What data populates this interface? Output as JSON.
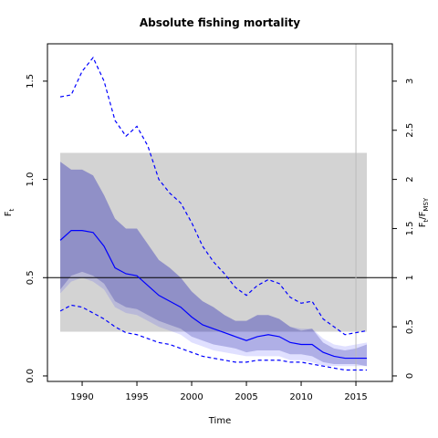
{
  "chart_data": {
    "type": "line",
    "title": "Absolute fishing mortality",
    "xlabel": "Time",
    "ylabel": [
      "F",
      "t"
    ],
    "y2label": [
      "F",
      "t",
      "/F",
      "MSY"
    ],
    "xlim": [
      1986.83,
      2018.33
    ],
    "ylim": [
      -0.028,
      1.69
    ],
    "y2lim": [
      -0.056,
      3.38
    ],
    "xticks": [
      1990,
      1995,
      2000,
      2005,
      2010,
      2015
    ],
    "yticks": [
      {
        "value": 0,
        "label": "0.0"
      },
      0.5,
      {
        "value": 1,
        "label": "1.0"
      },
      1.5
    ],
    "y2ticks": [
      0,
      0.5,
      1,
      1.5,
      2,
      2.5,
      3
    ],
    "x": [
      1988,
      1989,
      1990,
      1991,
      1992,
      1993,
      1994,
      1995,
      1996,
      1997,
      1998,
      1999,
      2000,
      2001,
      2002,
      2003,
      2004,
      2005,
      2006,
      2007,
      2008,
      2009,
      2010,
      2011,
      2012,
      2013,
      2014,
      2015,
      2016
    ],
    "reference_box": {
      "x": [
        1988,
        2016
      ],
      "y": [
        0.225,
        1.135
      ],
      "color": "#d3d3d3"
    },
    "hline": 0.5,
    "vline": 2015,
    "bands": [
      {
        "color": "rgba(0,0,255,0.12)",
        "upper": [
          1.09,
          1.05,
          1.05,
          1.02,
          0.92,
          0.8,
          0.75,
          0.75,
          0.67,
          0.59,
          0.55,
          0.5,
          0.43,
          0.38,
          0.35,
          0.31,
          0.28,
          0.28,
          0.31,
          0.31,
          0.29,
          0.25,
          0.24,
          0.24,
          0.19,
          0.16,
          0.15,
          0.16,
          0.17
        ],
        "lower": [
          0.42,
          0.48,
          0.5,
          0.48,
          0.44,
          0.35,
          0.32,
          0.31,
          0.28,
          0.25,
          0.23,
          0.21,
          0.17,
          0.15,
          0.13,
          0.12,
          0.11,
          0.1,
          0.1,
          0.1,
          0.1,
          0.08,
          0.08,
          0.07,
          0.05,
          0.05,
          0.05,
          0.05,
          0.05
        ]
      },
      {
        "color": "rgba(0,0,139,0.22)",
        "upper": [
          1.09,
          1.05,
          1.05,
          1.02,
          0.92,
          0.8,
          0.75,
          0.75,
          0.67,
          0.59,
          0.55,
          0.5,
          0.43,
          0.38,
          0.35,
          0.31,
          0.28,
          0.28,
          0.31,
          0.31,
          0.29,
          0.25,
          0.23,
          0.24,
          0.17,
          0.14,
          0.13,
          0.14,
          0.16
        ],
        "lower": [
          0.44,
          0.51,
          0.53,
          0.51,
          0.47,
          0.38,
          0.35,
          0.34,
          0.31,
          0.28,
          0.26,
          0.24,
          0.2,
          0.18,
          0.16,
          0.15,
          0.14,
          0.12,
          0.13,
          0.13,
          0.13,
          0.11,
          0.11,
          0.1,
          0.07,
          0.06,
          0.06,
          0.06,
          0.05
        ]
      }
    ],
    "series": [
      {
        "color": "#0000ff",
        "dashed": false,
        "values": [
          0.69,
          0.74,
          0.74,
          0.73,
          0.66,
          0.55,
          0.52,
          0.51,
          0.46,
          0.41,
          0.38,
          0.35,
          0.3,
          0.26,
          0.24,
          0.22,
          0.2,
          0.18,
          0.2,
          0.21,
          0.2,
          0.17,
          0.16,
          0.16,
          0.12,
          0.1,
          0.09,
          0.09,
          0.09
        ]
      },
      {
        "color": "#0000ff",
        "dashed": true,
        "values": [
          1.42,
          1.43,
          1.55,
          1.62,
          1.5,
          1.3,
          1.22,
          1.27,
          1.17,
          1.0,
          0.93,
          0.88,
          0.78,
          0.66,
          0.58,
          0.52,
          0.45,
          0.41,
          0.46,
          0.49,
          0.47,
          0.4,
          0.37,
          0.38,
          0.29,
          0.25,
          0.21,
          0.22,
          0.23
        ]
      },
      {
        "color": "#0000ff",
        "dashed": true,
        "values": [
          0.33,
          0.36,
          0.35,
          0.32,
          0.29,
          0.25,
          0.22,
          0.21,
          0.19,
          0.17,
          0.16,
          0.14,
          0.12,
          0.1,
          0.09,
          0.08,
          0.07,
          0.07,
          0.08,
          0.08,
          0.08,
          0.07,
          0.07,
          0.06,
          0.05,
          0.04,
          0.03,
          0.03,
          0.03
        ]
      }
    ]
  }
}
